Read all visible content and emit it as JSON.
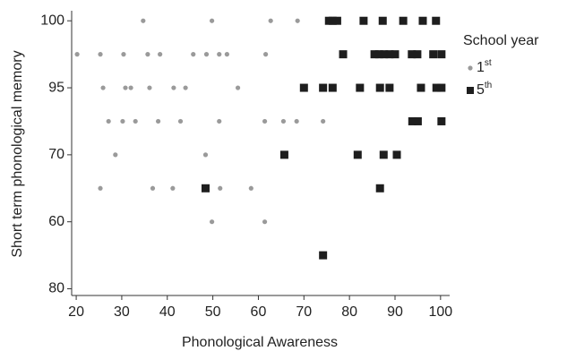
{
  "chart_data": {
    "type": "scatter",
    "x_label": "Phonological Awareness",
    "y_label": "Short term phonological memory",
    "legend_title": "School year",
    "xlim": [
      19,
      102
    ],
    "xticks": [
      20,
      30,
      40,
      50,
      60,
      70,
      80,
      90,
      100
    ],
    "ylim": [
      -0.1,
      4.15
    ],
    "yticks": [
      {
        "value": 0,
        "label": "80"
      },
      {
        "value": 1,
        "label": "60"
      },
      {
        "value": 2,
        "label": "70"
      },
      {
        "value": 3,
        "label": "95"
      },
      {
        "value": 4,
        "label": "100"
      }
    ],
    "series": [
      {
        "name": "1st",
        "color": "#9a9a9a",
        "marker": "circle",
        "x": [
          34.7,
          49.8,
          62.7,
          68.6,
          20.2,
          25.3,
          30.4,
          35.7,
          38.4,
          45.7,
          48.6,
          51.4,
          53.1,
          61.6,
          25.9,
          30.8,
          32,
          36.1,
          41.4,
          44,
          55.5,
          27.1,
          30.2,
          33,
          38,
          42.9,
          51.4,
          61.4,
          65.5,
          68.4,
          74.2,
          28.6,
          48.4,
          25.3,
          36.8,
          41.2,
          51.6,
          58.4,
          49.8,
          61.4
        ],
        "values": [
          4,
          4,
          4,
          4,
          3.5,
          3.5,
          3.5,
          3.5,
          3.5,
          3.5,
          3.5,
          3.5,
          3.5,
          3.5,
          3,
          3,
          3,
          3,
          3,
          3,
          3,
          2.5,
          2.5,
          2.5,
          2.5,
          2.5,
          2.5,
          2.5,
          2.5,
          2.5,
          2.5,
          2,
          2,
          1.5,
          1.5,
          1.5,
          1.5,
          1.5,
          1,
          1
        ]
      },
      {
        "name": "5th",
        "color": "#1e1e1e",
        "marker": "square",
        "x": [
          75.5,
          76.3,
          77.3,
          83.1,
          87.3,
          91.8,
          96.1,
          99,
          78.6,
          85.5,
          86.5,
          87.6,
          88.8,
          90,
          93.7,
          94.9,
          98.4,
          100.2,
          70,
          74.2,
          76.3,
          82.3,
          86.7,
          88.8,
          95.7,
          99.1,
          100.2,
          93.8,
          95,
          100.2,
          65.7,
          81.8,
          87.5,
          90.4,
          48.4,
          86.7,
          74.2
        ],
        "values": [
          4,
          4,
          4,
          4,
          4,
          4,
          4,
          4,
          3.5,
          3.5,
          3.5,
          3.5,
          3.5,
          3.5,
          3.5,
          3.5,
          3.5,
          3.5,
          3,
          3,
          3,
          3,
          3,
          3,
          3,
          3,
          3,
          2.5,
          2.5,
          2.5,
          2,
          2,
          2,
          2,
          1.5,
          1.5,
          0.5
        ]
      }
    ]
  }
}
